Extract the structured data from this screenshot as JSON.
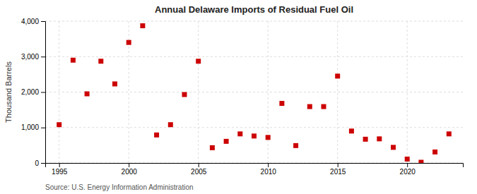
{
  "chart_data": {
    "type": "scatter",
    "title": "Annual Delaware Imports of Residual Fuel Oil",
    "ylabel": "Thousand Barrels",
    "annotations": [
      "Source: U.S. Energy Information Administration"
    ],
    "x": [
      1995,
      1996,
      1997,
      1998,
      1999,
      2000,
      2001,
      2002,
      2003,
      2004,
      2005,
      2006,
      2007,
      2008,
      2009,
      2010,
      2011,
      2012,
      2013,
      2014,
      2015,
      2016,
      2017,
      2018,
      2019,
      2020,
      2021,
      2022,
      2023
    ],
    "values": [
      1080,
      2900,
      1950,
      2870,
      2230,
      3400,
      3870,
      790,
      1080,
      1930,
      2870,
      430,
      610,
      820,
      760,
      720,
      1680,
      490,
      1590,
      1590,
      2450,
      900,
      670,
      680,
      440,
      110,
      20,
      310,
      820
    ],
    "color": "#cc0000",
    "marker": "square",
    "xlim": [
      1994,
      2024
    ],
    "ylim": [
      0,
      4000
    ],
    "xticks": [
      1995,
      2000,
      2005,
      2010,
      2015,
      2020
    ],
    "yticks": [
      0,
      {
        "value": 1000,
        "label": "1,000"
      },
      {
        "value": 2000,
        "label": "2,000"
      },
      {
        "value": 3000,
        "label": "3,000"
      },
      {
        "value": 4000,
        "label": "4,000"
      }
    ],
    "grid": true
  }
}
